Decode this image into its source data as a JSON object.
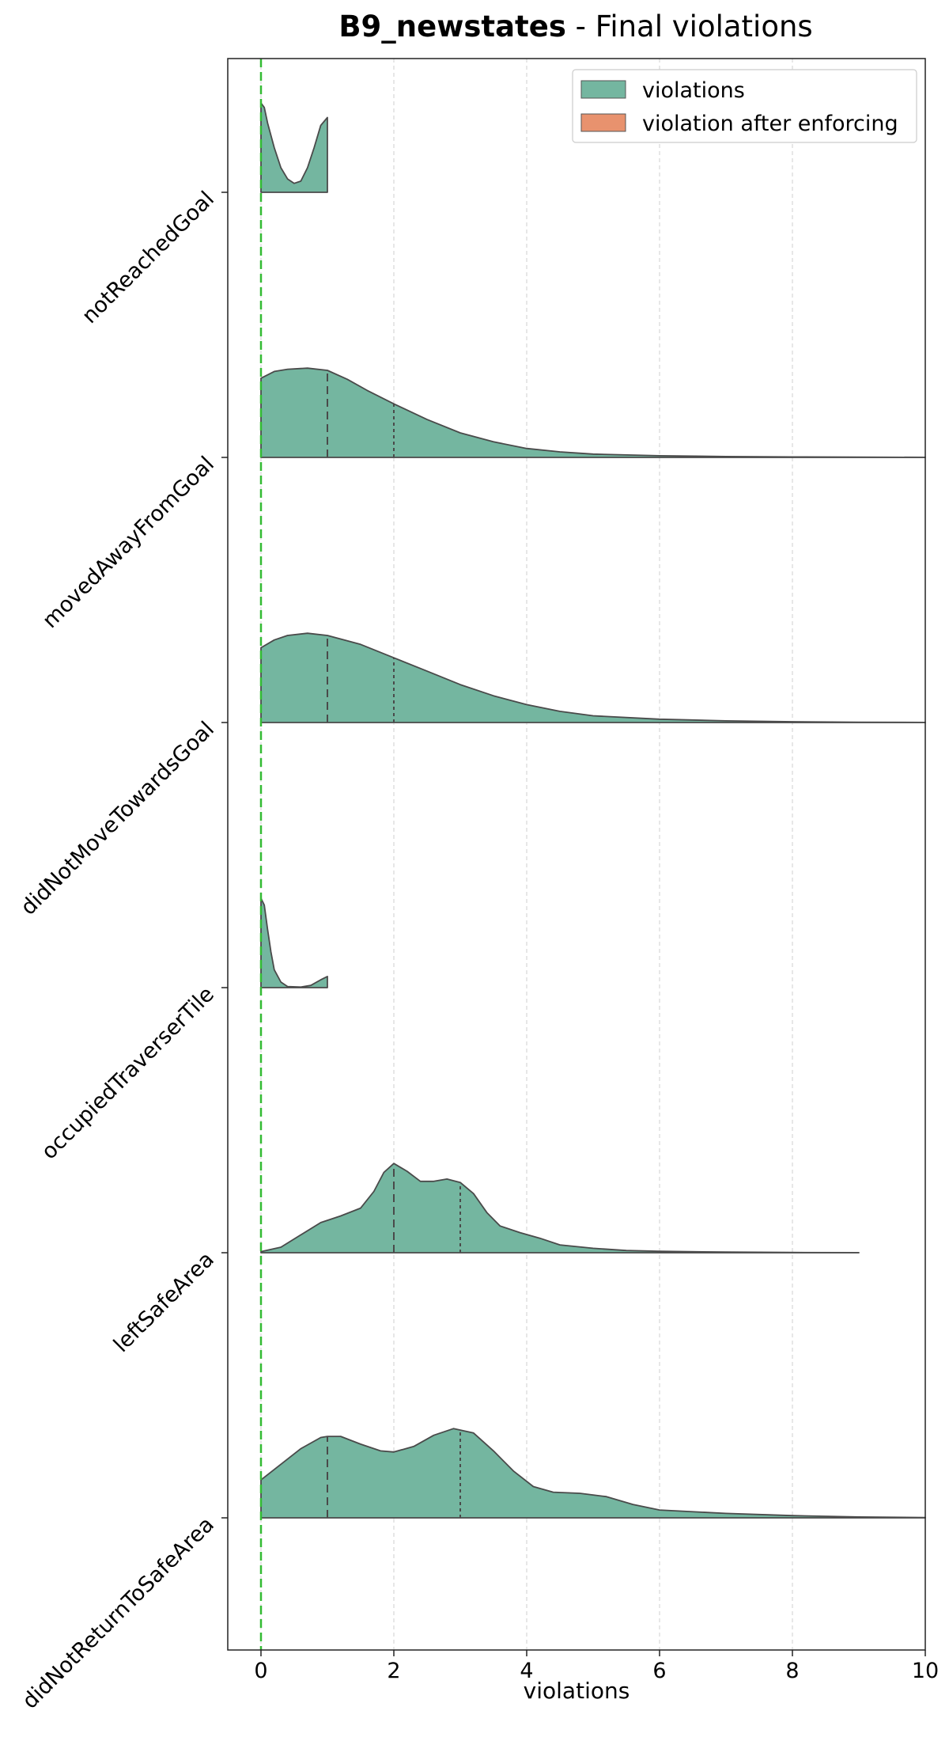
{
  "chart_data": {
    "type": "violin",
    "title_bold": "B9_newstates",
    "title_rest": " - Final violations",
    "xlabel": "violations",
    "ylabel": "",
    "xlim": [
      -0.5,
      10
    ],
    "xticks": [
      0,
      2,
      4,
      6,
      8,
      10
    ],
    "grid_x": true,
    "reference_line_x": 0,
    "legend_position": "top-right",
    "legend": [
      {
        "label": "violations",
        "color": "#74b6a0"
      },
      {
        "label": "violation after enforcing",
        "color": "#e8926e"
      }
    ],
    "categories": [
      "notReachedGoal",
      "movedAwayFromGoal",
      "didNotMoveTowardsGoal",
      "occupiedTraverserTile",
      "leftSafeArea",
      "didNotReturnToSafeArea"
    ],
    "series": [
      {
        "name": "violations",
        "violins": [
          {
            "category": "notReachedGoal",
            "density": [
              [
                0,
                0.8
              ],
              [
                0.05,
                0.76
              ],
              [
                0.1,
                0.62
              ],
              [
                0.2,
                0.4
              ],
              [
                0.3,
                0.22
              ],
              [
                0.4,
                0.12
              ],
              [
                0.5,
                0.08
              ],
              [
                0.6,
                0.1
              ],
              [
                0.7,
                0.22
              ],
              [
                0.8,
                0.4
              ],
              [
                0.9,
                0.6
              ],
              [
                1.0,
                0.67
              ]
            ],
            "quartiles": []
          },
          {
            "category": "movedAwayFromGoal",
            "density": [
              [
                0,
                0.71
              ],
              [
                0.2,
                0.77
              ],
              [
                0.4,
                0.79
              ],
              [
                0.7,
                0.8
              ],
              [
                1.0,
                0.78
              ],
              [
                1.3,
                0.7
              ],
              [
                1.6,
                0.6
              ],
              [
                2.0,
                0.48
              ],
              [
                2.5,
                0.34
              ],
              [
                3.0,
                0.22
              ],
              [
                3.5,
                0.14
              ],
              [
                4.0,
                0.08
              ],
              [
                4.5,
                0.05
              ],
              [
                5.0,
                0.03
              ],
              [
                6.0,
                0.015
              ],
              [
                7.0,
                0.008
              ],
              [
                8.0,
                0.004
              ],
              [
                9.0,
                0.002
              ],
              [
                10.0,
                0.001
              ]
            ],
            "quartiles": [
              1,
              2
            ]
          },
          {
            "category": "didNotMoveTowardsGoal",
            "density": [
              [
                0,
                0.67
              ],
              [
                0.2,
                0.74
              ],
              [
                0.4,
                0.78
              ],
              [
                0.7,
                0.8
              ],
              [
                1.0,
                0.78
              ],
              [
                1.5,
                0.7
              ],
              [
                2.0,
                0.58
              ],
              [
                2.5,
                0.46
              ],
              [
                3.0,
                0.34
              ],
              [
                3.5,
                0.24
              ],
              [
                4.0,
                0.16
              ],
              [
                4.5,
                0.1
              ],
              [
                5.0,
                0.06
              ],
              [
                6.0,
                0.03
              ],
              [
                7.0,
                0.015
              ],
              [
                8.0,
                0.007
              ],
              [
                9.0,
                0.003
              ],
              [
                10.0,
                0.001
              ]
            ],
            "quartiles": [
              1,
              2
            ]
          },
          {
            "category": "occupiedTraverserTile",
            "density": [
              [
                0,
                0.8
              ],
              [
                0.05,
                0.74
              ],
              [
                0.1,
                0.52
              ],
              [
                0.15,
                0.32
              ],
              [
                0.2,
                0.16
              ],
              [
                0.3,
                0.05
              ],
              [
                0.4,
                0.01
              ],
              [
                0.6,
                0.005
              ],
              [
                0.75,
                0.02
              ],
              [
                0.9,
                0.07
              ],
              [
                1.0,
                0.1
              ]
            ],
            "quartiles": []
          },
          {
            "category": "leftSafeArea",
            "density": [
              [
                0,
                0.01
              ],
              [
                0.3,
                0.05
              ],
              [
                0.6,
                0.16
              ],
              [
                0.9,
                0.27
              ],
              [
                1.2,
                0.33
              ],
              [
                1.5,
                0.4
              ],
              [
                1.7,
                0.55
              ],
              [
                1.85,
                0.72
              ],
              [
                2.0,
                0.8
              ],
              [
                2.2,
                0.73
              ],
              [
                2.4,
                0.64
              ],
              [
                2.6,
                0.64
              ],
              [
                2.8,
                0.66
              ],
              [
                3.0,
                0.63
              ],
              [
                3.2,
                0.53
              ],
              [
                3.4,
                0.36
              ],
              [
                3.6,
                0.24
              ],
              [
                3.9,
                0.18
              ],
              [
                4.2,
                0.13
              ],
              [
                4.5,
                0.07
              ],
              [
                5.0,
                0.04
              ],
              [
                5.5,
                0.02
              ],
              [
                6.0,
                0.013
              ],
              [
                7.0,
                0.006
              ],
              [
                8.0,
                0.002
              ],
              [
                9.0,
                0.001
              ]
            ],
            "quartiles": [
              2,
              3
            ]
          },
          {
            "category": "didNotReturnToSafeArea",
            "density": [
              [
                0,
                0.34
              ],
              [
                0.3,
                0.48
              ],
              [
                0.6,
                0.62
              ],
              [
                0.9,
                0.72
              ],
              [
                1.0,
                0.73
              ],
              [
                1.2,
                0.73
              ],
              [
                1.5,
                0.66
              ],
              [
                1.8,
                0.6
              ],
              [
                2.0,
                0.59
              ],
              [
                2.3,
                0.64
              ],
              [
                2.6,
                0.74
              ],
              [
                2.9,
                0.8
              ],
              [
                3.2,
                0.76
              ],
              [
                3.5,
                0.6
              ],
              [
                3.8,
                0.42
              ],
              [
                4.1,
                0.28
              ],
              [
                4.4,
                0.23
              ],
              [
                4.8,
                0.22
              ],
              [
                5.2,
                0.19
              ],
              [
                5.6,
                0.12
              ],
              [
                6.0,
                0.07
              ],
              [
                7.0,
                0.04
              ],
              [
                8.0,
                0.02
              ],
              [
                9.0,
                0.008
              ],
              [
                10.0,
                0.003
              ]
            ],
            "quartiles": [
              1,
              3
            ]
          }
        ]
      },
      {
        "name": "violation after enforcing",
        "violins": []
      }
    ]
  }
}
